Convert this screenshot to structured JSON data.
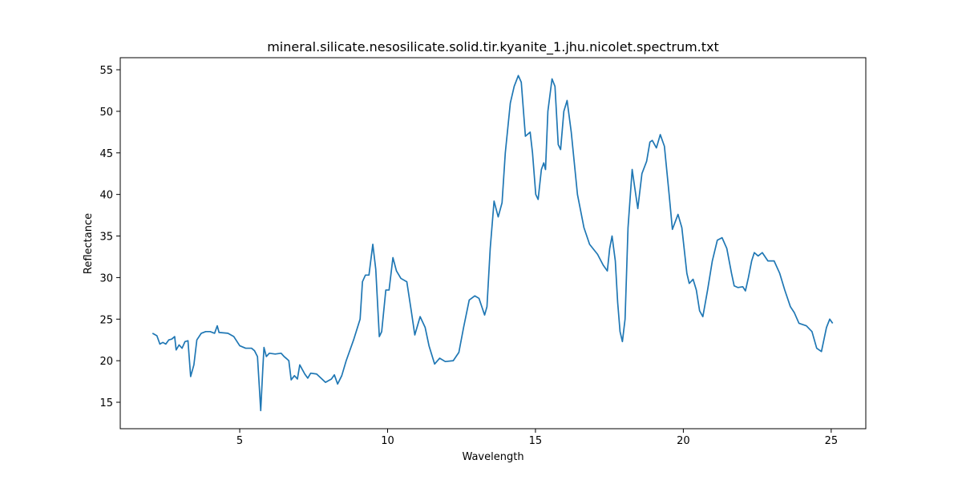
{
  "chart_data": {
    "type": "line",
    "title": "mineral.silicate.nesosilicate.solid.tir.kyanite_1.jhu.nicolet.spectrum.txt",
    "xlabel": "Wavelength",
    "ylabel": "Reflectance",
    "xlim": [
      0.96,
      26.17
    ],
    "ylim": [
      11.82,
      56.45
    ],
    "xticks": [
      5,
      10,
      15,
      20,
      25
    ],
    "yticks": [
      15,
      20,
      25,
      30,
      35,
      40,
      45,
      50,
      55
    ],
    "grid": false,
    "series": [
      {
        "name": "kyanite",
        "color": "#1f77b4",
        "x": [
          2.05,
          2.2,
          2.3,
          2.4,
          2.5,
          2.6,
          2.7,
          2.8,
          2.85,
          2.95,
          3.05,
          3.15,
          3.25,
          3.34,
          3.45,
          3.55,
          3.7,
          3.85,
          4.0,
          4.15,
          4.24,
          4.3,
          4.6,
          4.8,
          5.0,
          5.2,
          5.4,
          5.5,
          5.6,
          5.66,
          5.71,
          5.78,
          5.82,
          5.9,
          6.0,
          6.2,
          6.4,
          6.5,
          6.6,
          6.66,
          6.74,
          6.85,
          6.95,
          7.03,
          7.2,
          7.3,
          7.4,
          7.6,
          7.9,
          8.1,
          8.2,
          8.31,
          8.45,
          8.6,
          8.85,
          9.07,
          9.15,
          9.25,
          9.37,
          9.5,
          9.6,
          9.72,
          9.8,
          9.94,
          10.05,
          10.18,
          10.3,
          10.45,
          10.65,
          10.8,
          10.92,
          11.1,
          11.27,
          11.4,
          11.59,
          11.76,
          11.95,
          12.22,
          12.41,
          12.57,
          12.76,
          12.95,
          13.09,
          13.28,
          13.36,
          13.47,
          13.6,
          13.74,
          13.87,
          13.98,
          14.15,
          14.28,
          14.42,
          14.52,
          14.66,
          14.82,
          14.9,
          15.01,
          15.09,
          15.2,
          15.28,
          15.34,
          15.42,
          15.56,
          15.66,
          15.77,
          15.85,
          15.96,
          16.07,
          16.21,
          16.42,
          16.64,
          16.83,
          17.1,
          17.29,
          17.43,
          17.51,
          17.59,
          17.7,
          17.78,
          17.86,
          17.94,
          18.03,
          18.13,
          18.27,
          18.35,
          18.46,
          18.6,
          18.76,
          18.87,
          18.95,
          19.09,
          19.22,
          19.36,
          19.52,
          19.63,
          19.82,
          19.95,
          20.12,
          20.2,
          20.33,
          20.44,
          20.55,
          20.66,
          20.82,
          20.98,
          21.15,
          21.31,
          21.47,
          21.63,
          21.72,
          21.85,
          22.01,
          22.1,
          22.2,
          22.31,
          22.4,
          22.53,
          22.67,
          22.86,
          23.07,
          23.26,
          23.43,
          23.62,
          23.75,
          23.91,
          24.16,
          24.35,
          24.51,
          24.67,
          24.84,
          24.95,
          25.05
        ],
        "values": [
          23.3,
          23.0,
          22.0,
          22.2,
          22.0,
          22.5,
          22.6,
          22.9,
          21.3,
          21.9,
          21.5,
          22.3,
          22.4,
          18.1,
          19.5,
          22.5,
          23.3,
          23.5,
          23.5,
          23.3,
          24.2,
          23.4,
          23.3,
          22.9,
          21.8,
          21.5,
          21.5,
          21.2,
          20.5,
          17.0,
          14.0,
          19.0,
          21.6,
          20.5,
          20.9,
          20.8,
          20.9,
          20.5,
          20.2,
          20.0,
          17.7,
          18.2,
          17.8,
          19.5,
          18.4,
          17.9,
          18.5,
          18.4,
          17.4,
          17.8,
          18.3,
          17.2,
          18.2,
          20.0,
          22.5,
          25.0,
          29.5,
          30.3,
          30.3,
          34.0,
          31.0,
          22.9,
          23.5,
          28.5,
          28.5,
          32.4,
          30.8,
          29.9,
          29.5,
          26.0,
          23.1,
          25.3,
          24.0,
          21.8,
          19.6,
          20.3,
          19.9,
          20.0,
          21.0,
          24.0,
          27.3,
          27.8,
          27.5,
          25.5,
          26.5,
          33.5,
          39.2,
          37.3,
          39.0,
          45.0,
          51.0,
          53.0,
          54.3,
          53.5,
          47.0,
          47.5,
          45.0,
          40.0,
          39.4,
          43.0,
          43.8,
          43.0,
          50.0,
          53.9,
          53.0,
          46.0,
          45.4,
          50.0,
          51.3,
          47.5,
          40.0,
          36.0,
          34.0,
          32.8,
          31.5,
          30.8,
          33.5,
          35.0,
          32.0,
          27.0,
          23.5,
          22.3,
          25.0,
          36.0,
          43.0,
          41.0,
          38.3,
          42.5,
          44.0,
          46.3,
          46.5,
          45.6,
          47.2,
          45.8,
          40.0,
          35.8,
          37.6,
          36.0,
          30.5,
          29.3,
          29.8,
          28.5,
          26.0,
          25.3,
          28.5,
          32.0,
          34.5,
          34.8,
          33.5,
          30.5,
          29.0,
          28.8,
          28.9,
          28.4,
          30.0,
          32.0,
          33.0,
          32.6,
          33.0,
          32.0,
          32.0,
          30.5,
          28.5,
          26.5,
          25.8,
          24.5,
          24.2,
          23.5,
          21.5,
          21.1,
          24.0,
          25.0,
          24.5
        ]
      }
    ]
  }
}
